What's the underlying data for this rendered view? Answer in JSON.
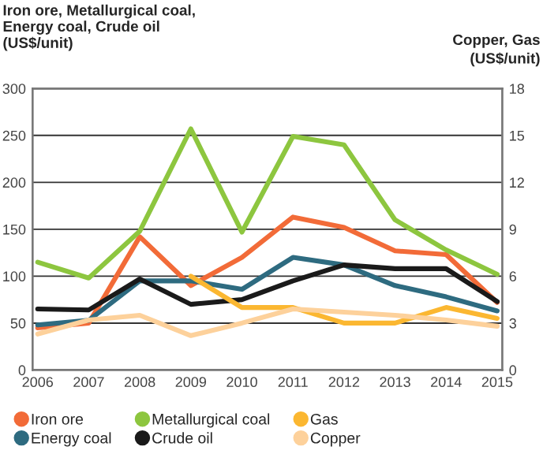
{
  "chart_data": {
    "type": "line",
    "ylabel": "Iron ore, Metallurgical coal,\nEnergy coal, Crude oil\n(US$/unit)",
    "y2label": "Copper, Gas\n(US$/unit)",
    "categories": [
      "2006",
      "2007",
      "2008",
      "2009",
      "2010",
      "2011",
      "2012",
      "2013",
      "2014",
      "2015"
    ],
    "series": [
      {
        "name": "Iron ore",
        "color": "#f26b38",
        "values": [
          45,
          50,
          142,
          90,
          120,
          163,
          152,
          127,
          123,
          72
        ]
      },
      {
        "name": "Metallurgical coal",
        "color": "#8dc63f",
        "values": [
          115,
          98,
          148,
          257,
          147,
          249,
          240,
          160,
          128,
          102
        ]
      },
      {
        "name": "Gas",
        "color": "#fbb731",
        "axis": "y2",
        "values": [
          null,
          null,
          null,
          6.0,
          4.0,
          4.0,
          3.0,
          3.0,
          4.0,
          3.3
        ]
      },
      {
        "name": "Energy coal",
        "color": "#2e6b80",
        "values": [
          48,
          53,
          95,
          95,
          86,
          120,
          112,
          90,
          78,
          63
        ]
      },
      {
        "name": "Crude oil",
        "color": "#1a1a1a",
        "values": [
          65,
          64,
          97,
          70,
          75,
          95,
          112,
          108,
          108,
          73
        ]
      },
      {
        "name": "Copper",
        "color": "#fdd19b",
        "axis": "y2",
        "values": [
          2.3,
          3.2,
          3.5,
          2.2,
          3.0,
          3.9,
          3.7,
          3.5,
          3.2,
          2.8
        ]
      }
    ],
    "ylim": [
      0,
      300
    ],
    "yticks": [
      0,
      50,
      100,
      150,
      200,
      250,
      300
    ],
    "y2lim": [
      0,
      18
    ],
    "y2ticks": [
      0,
      3,
      6,
      9,
      12,
      15,
      18
    ],
    "grid": "y",
    "legend": "bottom"
  }
}
